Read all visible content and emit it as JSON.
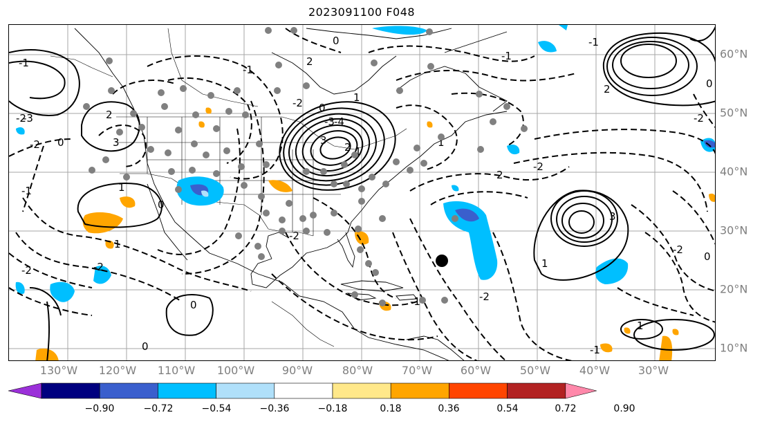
{
  "title": "2023091100 F048",
  "lon_labels": [
    "130°W",
    "120°W",
    "110°W",
    "100°W",
    "90°W",
    "80°W",
    "70°W",
    "60°W",
    "50°W",
    "40°W",
    "30°W"
  ],
  "lat_labels": [
    "60°N",
    "50°N",
    "40°N",
    "30°N",
    "20°N",
    "10°N"
  ],
  "colorbar": {
    "ticks": [
      "−0.90",
      "−0.72",
      "−0.54",
      "−0.36",
      "−0.18",
      "0.18",
      "0.36",
      "0.54",
      "0.72",
      "0.90"
    ],
    "colors": [
      "#9b30d9",
      "#00007f",
      "#3a5fcd",
      "#00bfff",
      "#b0e0fa",
      "#ffffff",
      "#ffe88a",
      "#ffa500",
      "#ff4500",
      "#b22222",
      "#ff88aa"
    ]
  },
  "contour_labels": [
    "-1",
    "-2",
    "-3",
    "-2",
    "0",
    "2",
    "3",
    "1",
    "0",
    "-2",
    "-1",
    "-2",
    "0",
    "1",
    "-1",
    "-3",
    "-4",
    "-2",
    "1",
    "0",
    "2",
    "3",
    "1",
    "-2",
    "-1",
    "2",
    "0",
    "1",
    "2",
    "-1",
    "-2",
    "0",
    "-2",
    "2",
    "-2",
    "-1",
    "1",
    "3",
    "1",
    "-1",
    "0",
    "-2",
    "0"
  ]
}
